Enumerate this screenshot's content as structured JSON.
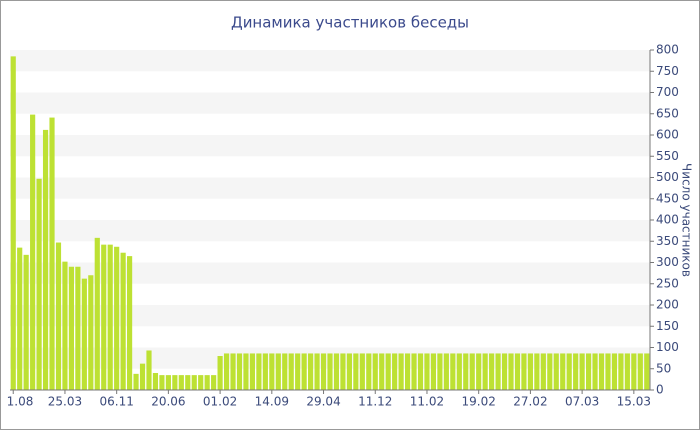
{
  "chart_data": {
    "type": "bar",
    "title": "Динамика участников беседы",
    "y_axis_label": "Число участников",
    "categories": [
      "1.08",
      null,
      null,
      null,
      null,
      null,
      null,
      null,
      "25.03",
      null,
      null,
      null,
      null,
      null,
      null,
      null,
      "06.11",
      null,
      null,
      null,
      null,
      null,
      null,
      null,
      "20.06",
      null,
      null,
      null,
      null,
      null,
      null,
      null,
      "01.02",
      null,
      null,
      null,
      null,
      null,
      null,
      null,
      "14.09",
      null,
      null,
      null,
      null,
      null,
      null,
      null,
      "29.04",
      null,
      null,
      null,
      null,
      null,
      null,
      null,
      "11.12",
      null,
      null,
      null,
      null,
      null,
      null,
      null,
      "11.02",
      null,
      null,
      null,
      null,
      null,
      null,
      null,
      "19.02",
      null,
      null,
      null,
      null,
      null,
      null,
      null,
      "27.02",
      null,
      null,
      null,
      null,
      null,
      null,
      null,
      "07.03",
      null,
      null,
      null,
      null,
      null,
      null,
      null,
      "15.03",
      null,
      null
    ],
    "values": [
      785,
      335,
      318,
      648,
      497,
      612,
      641,
      347,
      302,
      290,
      290,
      262,
      270,
      358,
      342,
      342,
      337,
      323,
      315,
      38,
      62,
      93,
      40,
      35,
      35,
      35,
      35,
      35,
      35,
      35,
      35,
      35,
      80,
      86,
      86,
      86,
      86,
      86,
      86,
      86,
      86,
      86,
      86,
      86,
      86,
      86,
      86,
      86,
      86,
      86,
      86,
      86,
      86,
      86,
      86,
      86,
      86,
      86,
      86,
      86,
      86,
      86,
      86,
      86,
      86,
      86,
      86,
      86,
      86,
      86,
      86,
      86,
      86,
      86,
      86,
      86,
      86,
      86,
      86,
      86,
      86,
      86,
      86,
      86,
      86,
      86,
      86,
      86,
      86,
      86,
      86,
      86,
      86,
      86,
      86,
      86,
      86,
      86,
      86
    ],
    "color": "#bde133",
    "ylim": [
      0,
      800
    ],
    "yticks": [
      0,
      50,
      100,
      150,
      200,
      250,
      300,
      350,
      400,
      450,
      500,
      550,
      600,
      650,
      700,
      750,
      800
    ],
    "y_axis_side": "right",
    "grid": "bands"
  }
}
